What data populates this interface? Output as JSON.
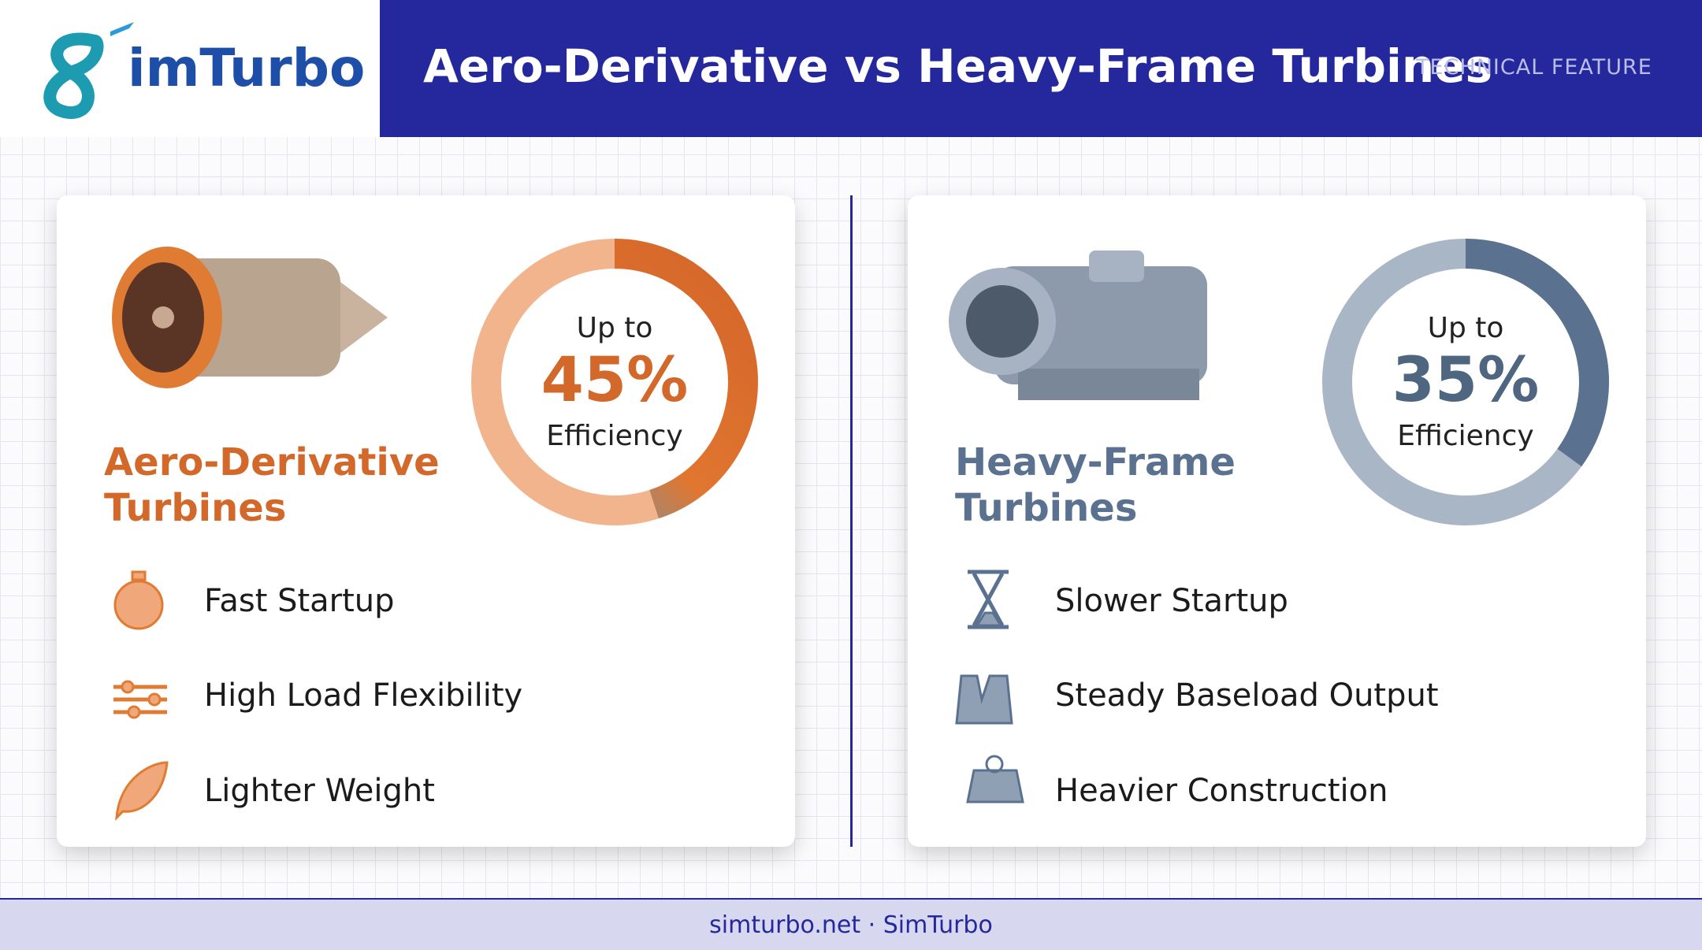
{
  "header": {
    "logo_text": "imTurbo",
    "title": "Aero-Derivative vs Heavy-Frame Turbines",
    "tag": "TECHNICAL FEATURE"
  },
  "cards": [
    {
      "title_line1": "Aero-Derivative",
      "title_line2": "Turbines",
      "efficiency": {
        "prefix": "Up to",
        "value": 45,
        "value_label": "45%",
        "suffix": "Efficiency"
      },
      "features": [
        "Fast Startup",
        "High Load Flexibility",
        "Lighter Weight"
      ]
    },
    {
      "title_line1": "Heavy-Frame",
      "title_line2": "Turbines",
      "efficiency": {
        "prefix": "Up to",
        "value": 35,
        "value_label": "35%",
        "suffix": "Efficiency"
      },
      "features": [
        "Slower Startup",
        "Steady Baseload Output",
        "Heavier Construction"
      ]
    }
  ],
  "footer": {
    "text": "simturbo.net · SimTurbo"
  }
}
